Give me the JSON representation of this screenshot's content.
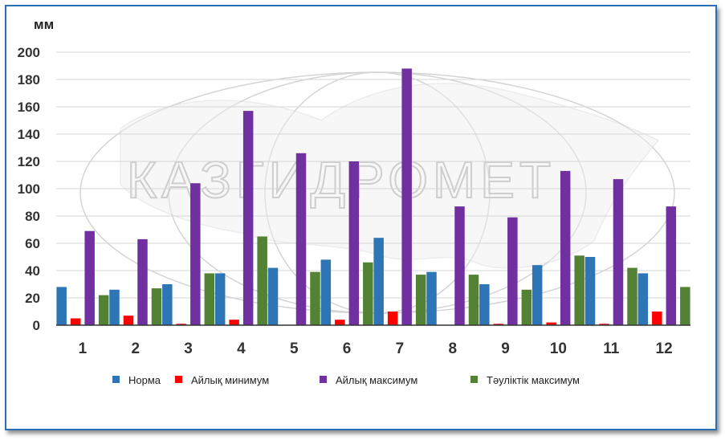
{
  "chart_data": {
    "type": "bar",
    "unit_label": "мм",
    "watermark": "КАЗГИДРОМЕТ",
    "categories": [
      "1",
      "2",
      "3",
      "4",
      "5",
      "6",
      "7",
      "8",
      "9",
      "10",
      "11",
      "12"
    ],
    "ylim": [
      0,
      200
    ],
    "yticks": [
      "0",
      "20",
      "40",
      "60",
      "80",
      "100",
      "120",
      "140",
      "160",
      "180",
      "200"
    ],
    "grid": true,
    "legend_position": "bottom",
    "series": [
      {
        "name": "Норма",
        "color": "#2e75b6",
        "values": [
          28,
          26,
          30,
          38,
          42,
          48,
          64,
          39,
          30,
          44,
          50,
          38
        ]
      },
      {
        "name": "Айлық минимум",
        "color": "#ff0000",
        "values": [
          5,
          7,
          1,
          4,
          0,
          4,
          10,
          0,
          1,
          2,
          1,
          10
        ]
      },
      {
        "name": "Айлық максимум",
        "color": "#7030a0",
        "values": [
          69,
          63,
          104,
          157,
          126,
          120,
          188,
          87,
          79,
          113,
          107,
          87
        ]
      },
      {
        "name": "Тәуліктік максимум",
        "color": "#548235",
        "values": [
          22,
          27,
          38,
          65,
          39,
          46,
          37,
          37,
          26,
          51,
          42,
          28
        ]
      }
    ]
  }
}
